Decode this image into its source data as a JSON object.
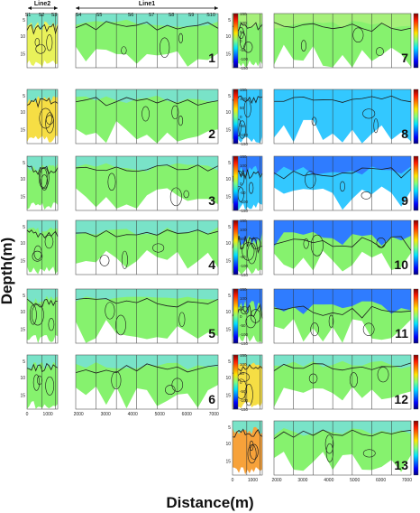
{
  "chart_data": {
    "type": "heatmap",
    "title": "",
    "xlabel": "Distance(m)",
    "ylabel": "Depth(m)",
    "line_labels": [
      "Line2",
      "Line1"
    ],
    "station_labels": [
      "S1",
      "S2",
      "S3",
      "S4",
      "S5",
      "S6",
      "S7",
      "S8",
      "S9",
      "S10"
    ],
    "depth_ticks": [
      "5",
      "10",
      "15"
    ],
    "x_ticks_left": [
      "0",
      "1000"
    ],
    "x_ticks_right": [
      "2000",
      "3000",
      "4000",
      "5000",
      "6000",
      "7000"
    ],
    "colorbar_ticks": [
      "150",
      "100",
      "50",
      "0",
      "-50",
      "-100",
      "-150"
    ],
    "colorbar_range": [
      -150,
      150
    ],
    "colormap": "jet",
    "panels": [
      {
        "id": "1",
        "pattern": "green_orange_low"
      },
      {
        "id": "2",
        "pattern": "green_yellow"
      },
      {
        "id": "3",
        "pattern": "green"
      },
      {
        "id": "4",
        "pattern": "green"
      },
      {
        "id": "5",
        "pattern": "green"
      },
      {
        "id": "6",
        "pattern": "green"
      },
      {
        "id": "7",
        "pattern": "green_light"
      },
      {
        "id": "8",
        "pattern": "cyan_blue"
      },
      {
        "id": "9",
        "pattern": "blue_top_cyan"
      },
      {
        "id": "10",
        "pattern": "blue_top_green_below"
      },
      {
        "id": "11",
        "pattern": "blue_top_green_below"
      },
      {
        "id": "12",
        "pattern": "green_yellow"
      },
      {
        "id": "13",
        "pattern": "orange_left_green"
      }
    ]
  }
}
